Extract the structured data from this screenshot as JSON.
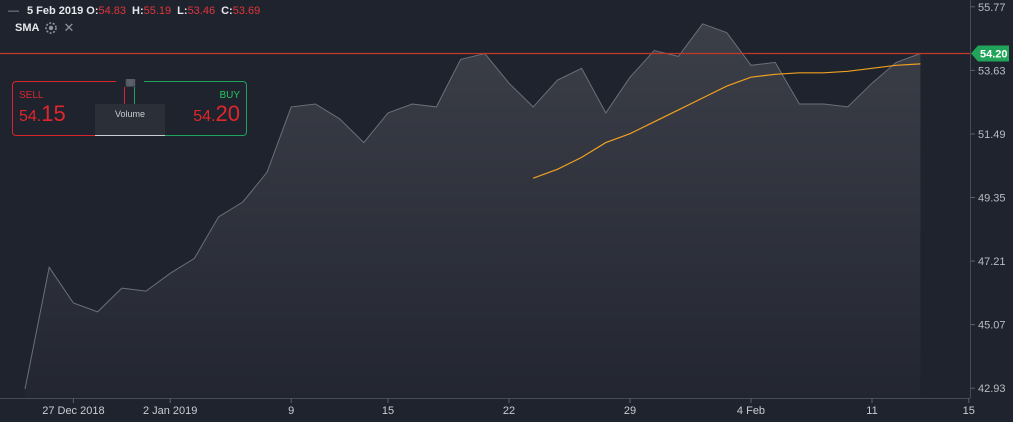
{
  "header": {
    "date": "5 Feb 2019",
    "open_label": "O:",
    "open": "54.83",
    "high_label": "H:",
    "high": "55.19",
    "low_label": "L:",
    "low": "53.46",
    "close_label": "C:",
    "close": "53.69"
  },
  "indicator": {
    "name": "SMA",
    "close_glyph": "✕",
    "icon": "gear-icon"
  },
  "trade": {
    "sell_label": "SELL",
    "sell_price_small": "54.",
    "sell_price_big": "15",
    "buy_label": "BUY",
    "buy_price_small": "54.",
    "buy_price_big": "20",
    "volume_label": "Volume",
    "handle_glyph": "|||||||||"
  },
  "colors": {
    "background": "#1f232d",
    "area_line": "#6b6f78",
    "sma_line": "#f0a020",
    "price_line": "#c0392b",
    "price_tag": "#21a35a",
    "sell": "#d8262e",
    "buy": "#20a35a"
  },
  "chart_data": {
    "type": "area",
    "title": "",
    "xlabel": "",
    "ylabel": "",
    "ylim": [
      42.6,
      56.0
    ],
    "y_ticks": [
      "55.77",
      "53.63",
      "51.49",
      "49.35",
      "47.21",
      "45.07",
      "42.93"
    ],
    "x_ticks": [
      {
        "label": "27 Dec 2018",
        "index": 2
      },
      {
        "label": "2 Jan 2019",
        "index": 6
      },
      {
        "label": "9",
        "index": 11
      },
      {
        "label": "15",
        "index": 15
      },
      {
        "label": "22",
        "index": 20
      },
      {
        "label": "29",
        "index": 25
      },
      {
        "label": "4 Feb",
        "index": 30
      },
      {
        "label": "11",
        "index": 35
      },
      {
        "label": "15",
        "index": 39
      }
    ],
    "current_price": "54.20",
    "current_value": 54.2,
    "series": [
      {
        "values": [
          42.9,
          47.0,
          45.8,
          45.5,
          46.3,
          46.2,
          46.8,
          47.3,
          48.7,
          49.2,
          50.2,
          52.4,
          52.5,
          52.0,
          51.2,
          52.2,
          52.5,
          52.4,
          54.0,
          54.2,
          53.2,
          52.4,
          53.3,
          53.7,
          52.2,
          53.4,
          54.3,
          54.1,
          55.2,
          54.9,
          53.8,
          53.9,
          52.5,
          52.5,
          52.4,
          53.2,
          53.9,
          54.2
        ]
      },
      {
        "name": "SMA",
        "values": [
          null,
          null,
          null,
          null,
          null,
          null,
          null,
          null,
          null,
          null,
          null,
          null,
          null,
          null,
          null,
          null,
          null,
          null,
          null,
          null,
          null,
          50.0,
          50.3,
          50.7,
          51.2,
          51.5,
          51.9,
          52.3,
          52.7,
          53.1,
          53.4,
          53.5,
          53.55,
          53.55,
          53.6,
          53.7,
          53.8,
          53.85
        ]
      }
    ]
  }
}
